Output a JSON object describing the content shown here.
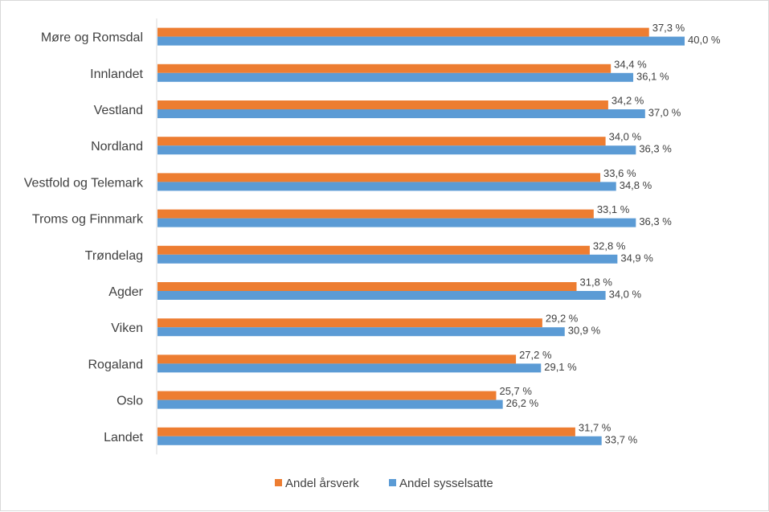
{
  "chart_data": {
    "type": "bar",
    "orientation": "horizontal",
    "title": "",
    "xlabel": "",
    "ylabel": "",
    "xlim": [
      0,
      45
    ],
    "grid": false,
    "legend_position": "bottom",
    "categories": [
      "Møre og Romsdal",
      "Innlandet",
      "Vestland",
      "Nordland",
      "Vestfold og Telemark",
      "Troms og Finnmark",
      "Trøndelag",
      "Agder",
      "Viken",
      "Rogaland",
      "Oslo",
      "Landet"
    ],
    "series": [
      {
        "name": "Andel årsverk",
        "color": "#ED7D31",
        "values": [
          37.3,
          34.4,
          34.2,
          34.0,
          33.6,
          33.1,
          32.8,
          31.8,
          29.2,
          27.2,
          25.7,
          31.7
        ],
        "labels": [
          "37,3 %",
          "34,4 %",
          "34,2 %",
          "34,0 %",
          "33,6 %",
          "33,1 %",
          "32,8 %",
          "31,8 %",
          "29,2 %",
          "27,2 %",
          "25,7 %",
          "31,7 %"
        ]
      },
      {
        "name": "Andel sysselsatte",
        "color": "#5B9BD5",
        "values": [
          40.0,
          36.1,
          37.0,
          36.3,
          34.8,
          36.3,
          34.9,
          34.0,
          30.9,
          29.1,
          26.2,
          33.7
        ],
        "labels": [
          "40,0 %",
          "36,1 %",
          "37,0 %",
          "36,3 %",
          "34,8 %",
          "36,3 %",
          "34,9 %",
          "34,0 %",
          "30,9 %",
          "29,1 %",
          "26,2 %",
          "33,7 %"
        ]
      }
    ]
  }
}
